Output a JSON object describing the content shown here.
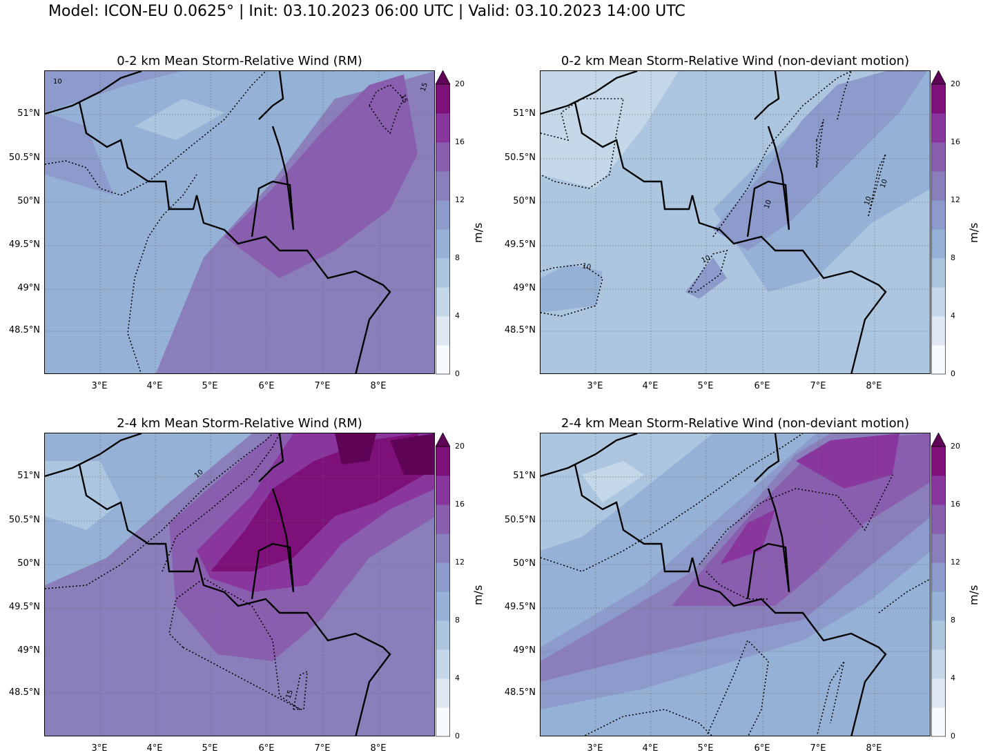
{
  "suptitle": "Model: ICON-EU 0.0625° | Init: 03.10.2023 06:00 UTC | Valid: 03.10.2023 14:00 UTC",
  "colorbar": {
    "unit": "m/s",
    "ticks": [
      "0",
      "4",
      "8",
      "12",
      "16",
      "20"
    ],
    "colors": [
      "#f7fbff",
      "#dfe8f3",
      "#c5d8e9",
      "#adc6e0",
      "#96b1d6",
      "#8c9acc",
      "#8a7fba",
      "#8a5eae",
      "#89379f",
      "#7e1179",
      "#5e0356"
    ]
  },
  "axes": {
    "lat_labels": [
      "51°N",
      "50.5°N",
      "50°N",
      "49.5°N",
      "49°N",
      "48.5°N"
    ],
    "lon_labels": [
      "3°E",
      "4°E",
      "5°E",
      "6°E",
      "7°E",
      "8°E"
    ]
  },
  "panels": [
    {
      "title": "0-2 km Mean Storm-Relative Wind (RM)",
      "contour_labels": [
        "10",
        "15",
        "15"
      ]
    },
    {
      "title": "0-2 km Mean Storm-Relative Wind (non-deviant motion)",
      "contour_labels": [
        "10",
        "10",
        "10",
        "10",
        "10"
      ]
    },
    {
      "title": "2-4 km Mean Storm-Relative Wind (RM)",
      "contour_labels": [
        "10",
        "15"
      ]
    },
    {
      "title": "2-4 km Mean Storm-Relative Wind (non-deviant motion)",
      "contour_labels": []
    }
  ]
}
